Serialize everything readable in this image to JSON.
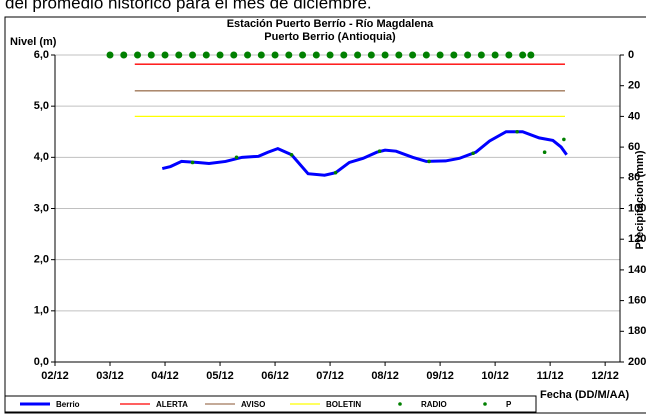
{
  "caption": "del promedio histórico para el mes de diciembre.",
  "chart_data": {
    "type": "line",
    "title": "Estación Puerto Berrío - Río Magdalena",
    "subtitle": "Puerto Berrio (Antioquia)",
    "y_label": "Nivel (m)",
    "y2_label": "Precipitacion (mm)",
    "x_label": "Fecha (DD/M/AA)",
    "xlim": [
      2,
      12.27
    ],
    "xticks": [
      {
        "value": 2,
        "label": "02/12"
      },
      {
        "value": 3,
        "label": "03/12"
      },
      {
        "value": 4,
        "label": "04/12"
      },
      {
        "value": 5,
        "label": "05/12"
      },
      {
        "value": 6,
        "label": "06/12"
      },
      {
        "value": 7,
        "label": "07/12"
      },
      {
        "value": 8,
        "label": "08/12"
      },
      {
        "value": 9,
        "label": "09/12"
      },
      {
        "value": 10,
        "label": "10/12"
      },
      {
        "value": 11,
        "label": "11/12"
      },
      {
        "value": 12,
        "label": "12/12"
      }
    ],
    "ylim": [
      0,
      6
    ],
    "yticks": [
      {
        "value": 0,
        "label": "0,0"
      },
      {
        "value": 1,
        "label": "1,0"
      },
      {
        "value": 2,
        "label": "2,0"
      },
      {
        "value": 3,
        "label": "3,0"
      },
      {
        "value": 4,
        "label": "4,0"
      },
      {
        "value": 5,
        "label": "5,0"
      },
      {
        "value": 6,
        "label": "6,0"
      }
    ],
    "y2lim": [
      200,
      0
    ],
    "y2ticks": [
      0,
      20,
      40,
      60,
      80,
      100,
      120,
      140,
      160,
      180,
      200
    ],
    "grid": true,
    "legend": "bottom",
    "series": [
      {
        "name": "Berrio",
        "type": "line",
        "color": "#0000ff",
        "x": [
          3.95,
          4.1,
          4.3,
          4.6,
          4.8,
          5.1,
          5.4,
          5.7,
          5.87,
          6.05,
          6.3,
          6.6,
          6.9,
          7.1,
          7.35,
          7.6,
          7.85,
          8.0,
          8.2,
          8.5,
          8.75,
          9.1,
          9.35,
          9.65,
          9.9,
          10.2,
          10.5,
          10.8,
          11.05,
          11.2,
          11.3
        ],
        "values": [
          3.78,
          3.82,
          3.92,
          3.9,
          3.88,
          3.92,
          4.0,
          4.02,
          4.1,
          4.17,
          4.05,
          3.68,
          3.65,
          3.7,
          3.9,
          3.98,
          4.1,
          4.14,
          4.12,
          4.0,
          3.92,
          3.93,
          3.98,
          4.1,
          4.32,
          4.5,
          4.5,
          4.38,
          4.33,
          4.2,
          4.05
        ]
      },
      {
        "name": "ALERTA",
        "type": "line",
        "color": "#ff0000",
        "x": [
          3.45,
          11.27
        ],
        "values": [
          5.82,
          5.82
        ]
      },
      {
        "name": "AVISO",
        "type": "line",
        "color": "#a0785a",
        "x": [
          3.45,
          11.27
        ],
        "values": [
          5.3,
          5.3
        ]
      },
      {
        "name": "BOLETIN",
        "type": "line",
        "color": "#ffff00",
        "x": [
          3.45,
          11.27
        ],
        "values": [
          4.8,
          4.8
        ]
      },
      {
        "name": "RADIO",
        "type": "scatter",
        "color": "#008000",
        "x": [
          4.5,
          5.3,
          6.3,
          7.1,
          7.9,
          8.8,
          9.6,
          10.4,
          10.9,
          11.25
        ],
        "values": [
          3.9,
          4.0,
          4.05,
          3.7,
          4.12,
          3.92,
          4.08,
          4.5,
          4.1,
          4.35
        ]
      },
      {
        "name": "P",
        "type": "scatter",
        "color": "#008000",
        "axis": "y2",
        "x": [
          3.0,
          3.25,
          3.5,
          3.75,
          4.0,
          4.25,
          4.5,
          4.75,
          5.0,
          5.25,
          5.5,
          5.75,
          6.0,
          6.25,
          6.5,
          6.75,
          7.0,
          7.25,
          7.5,
          7.75,
          8.0,
          8.25,
          8.5,
          8.75,
          9.0,
          9.25,
          9.5,
          9.75,
          10.0,
          10.25,
          10.5,
          10.65
        ],
        "values": [
          0,
          0,
          0,
          0,
          0,
          0,
          0,
          0,
          0,
          0,
          0,
          0,
          0,
          0,
          0,
          0,
          0,
          0,
          0,
          0,
          0,
          0,
          0,
          0,
          0,
          0,
          0,
          0,
          0,
          0,
          0,
          0
        ]
      }
    ]
  }
}
